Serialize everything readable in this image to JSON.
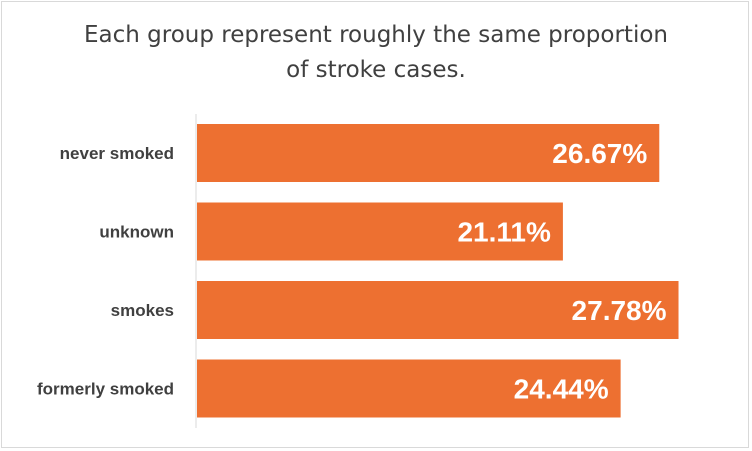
{
  "chart_data": {
    "type": "bar",
    "orientation": "horizontal",
    "title": [
      "Each group represent roughly the same proportion",
      "of stroke cases."
    ],
    "categories": [
      "never smoked",
      "unknown",
      "smokes",
      "formerly smoked"
    ],
    "values": [
      26.67,
      21.11,
      27.78,
      24.44
    ],
    "value_labels": [
      "26.67%",
      "21.11%",
      "27.78%",
      "24.44%"
    ],
    "xlim": [
      0,
      28.5
    ],
    "grid": false,
    "legend": "none",
    "bar_color": "#ED7031"
  }
}
